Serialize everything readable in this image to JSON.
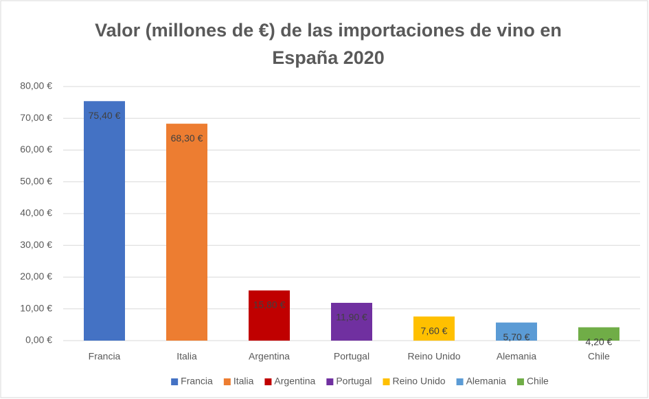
{
  "chart_data": {
    "type": "bar",
    "title": "Valor (millones de €) de las importaciones de vino en España 2020",
    "categories": [
      "Francia",
      "Italia",
      "Argentina",
      "Portugal",
      "Reino Unido",
      "Alemania",
      "Chile"
    ],
    "values": [
      75.4,
      68.3,
      15.8,
      11.9,
      7.6,
      5.7,
      4.2
    ],
    "value_labels": [
      "75,40 €",
      "68,30 €",
      "15,80 €",
      "11,90 €",
      "7,60 €",
      "5,70 €",
      "4,20 €"
    ],
    "colors": [
      "#4472c4",
      "#ed7d31",
      "#c00000",
      "#7030a0",
      "#ffc000",
      "#5b9bd5",
      "#70ad47"
    ],
    "ylim": [
      0,
      80
    ],
    "yticks": [
      {
        "value": 0,
        "label": "0,00 €"
      },
      {
        "value": 10,
        "label": "10,00 €"
      },
      {
        "value": 20,
        "label": "20,00 €"
      },
      {
        "value": 30,
        "label": "30,00 €"
      },
      {
        "value": 40,
        "label": "40,00 €"
      },
      {
        "value": 50,
        "label": "50,00 €"
      },
      {
        "value": 60,
        "label": "60,00 €"
      },
      {
        "value": 70,
        "label": "70,00 €"
      },
      {
        "value": 80,
        "label": "80,00 €"
      }
    ],
    "grid": true,
    "legend": "bottom"
  }
}
